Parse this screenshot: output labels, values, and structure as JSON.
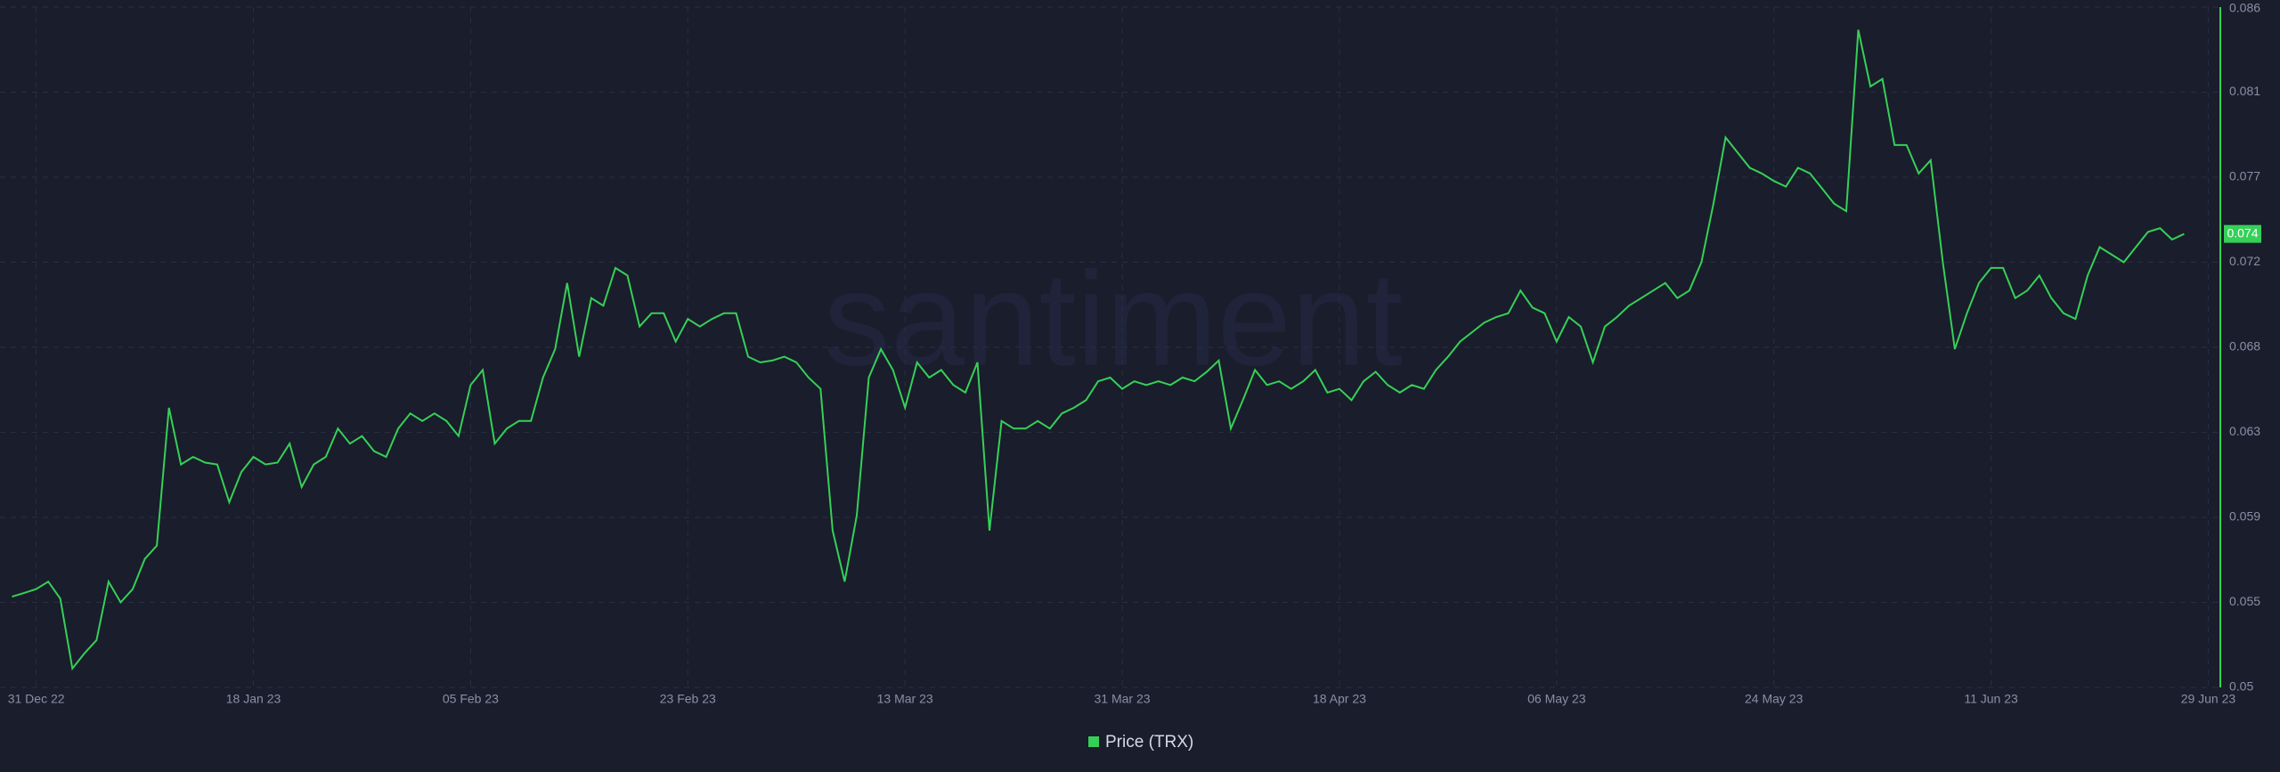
{
  "chart_data": {
    "type": "line",
    "watermark": "santiment",
    "x": [
      "2022-12-29",
      "2022-12-30",
      "2022-12-31",
      "2023-01-01",
      "2023-01-02",
      "2023-01-03",
      "2023-01-04",
      "2023-01-05",
      "2023-01-06",
      "2023-01-07",
      "2023-01-08",
      "2023-01-09",
      "2023-01-10",
      "2023-01-11",
      "2023-01-12",
      "2023-01-13",
      "2023-01-14",
      "2023-01-15",
      "2023-01-16",
      "2023-01-17",
      "2023-01-18",
      "2023-01-19",
      "2023-01-20",
      "2023-01-21",
      "2023-01-22",
      "2023-01-23",
      "2023-01-24",
      "2023-01-25",
      "2023-01-26",
      "2023-01-27",
      "2023-01-28",
      "2023-01-29",
      "2023-01-30",
      "2023-01-31",
      "2023-02-01",
      "2023-02-02",
      "2023-02-03",
      "2023-02-04",
      "2023-02-05",
      "2023-02-06",
      "2023-02-07",
      "2023-02-08",
      "2023-02-09",
      "2023-02-10",
      "2023-02-11",
      "2023-02-12",
      "2023-02-13",
      "2023-02-14",
      "2023-02-15",
      "2023-02-16",
      "2023-02-17",
      "2023-02-18",
      "2023-02-19",
      "2023-02-20",
      "2023-02-21",
      "2023-02-22",
      "2023-02-23",
      "2023-02-24",
      "2023-02-25",
      "2023-02-26",
      "2023-02-27",
      "2023-02-28",
      "2023-03-01",
      "2023-03-02",
      "2023-03-03",
      "2023-03-04",
      "2023-03-05",
      "2023-03-06",
      "2023-03-07",
      "2023-03-08",
      "2023-03-09",
      "2023-03-10",
      "2023-03-11",
      "2023-03-12",
      "2023-03-13",
      "2023-03-14",
      "2023-03-15",
      "2023-03-16",
      "2023-03-17",
      "2023-03-18",
      "2023-03-19",
      "2023-03-20",
      "2023-03-21",
      "2023-03-22",
      "2023-03-23",
      "2023-03-24",
      "2023-03-25",
      "2023-03-26",
      "2023-03-27",
      "2023-03-28",
      "2023-03-29",
      "2023-03-30",
      "2023-03-31",
      "2023-04-01",
      "2023-04-02",
      "2023-04-03",
      "2023-04-04",
      "2023-04-05",
      "2023-04-06",
      "2023-04-07",
      "2023-04-08",
      "2023-04-09",
      "2023-04-10",
      "2023-04-11",
      "2023-04-12",
      "2023-04-13",
      "2023-04-14",
      "2023-04-15",
      "2023-04-16",
      "2023-04-17",
      "2023-04-18",
      "2023-04-19",
      "2023-04-20",
      "2023-04-21",
      "2023-04-22",
      "2023-04-23",
      "2023-04-24",
      "2023-04-25",
      "2023-04-26",
      "2023-04-27",
      "2023-04-28",
      "2023-04-29",
      "2023-04-30",
      "2023-05-01",
      "2023-05-02",
      "2023-05-03",
      "2023-05-04",
      "2023-05-05",
      "2023-05-06",
      "2023-05-07",
      "2023-05-08",
      "2023-05-09",
      "2023-05-10",
      "2023-05-11",
      "2023-05-12",
      "2023-05-13",
      "2023-05-14",
      "2023-05-15",
      "2023-05-16",
      "2023-05-17",
      "2023-05-18",
      "2023-05-19",
      "2023-05-20",
      "2023-05-21",
      "2023-05-22",
      "2023-05-23",
      "2023-05-24",
      "2023-05-25",
      "2023-05-26",
      "2023-05-27",
      "2023-05-28",
      "2023-05-29",
      "2023-05-30",
      "2023-05-31",
      "2023-06-01",
      "2023-06-02",
      "2023-06-03",
      "2023-06-04",
      "2023-06-05",
      "2023-06-06",
      "2023-06-07",
      "2023-06-08",
      "2023-06-09",
      "2023-06-10",
      "2023-06-11",
      "2023-06-12",
      "2023-06-13",
      "2023-06-14",
      "2023-06-15",
      "2023-06-16",
      "2023-06-17",
      "2023-06-18",
      "2023-06-19",
      "2023-06-20",
      "2023-06-21",
      "2023-06-22",
      "2023-06-23",
      "2023-06-24",
      "2023-06-25",
      "2023-06-26",
      "2023-06-27"
    ],
    "series": [
      {
        "name": "Price (TRX)",
        "color": "#35d058",
        "values": [
          0.0548,
          0.055,
          0.0552,
          0.0556,
          0.0547,
          0.051,
          0.0518,
          0.0525,
          0.0556,
          0.0545,
          0.0552,
          0.0568,
          0.0575,
          0.0648,
          0.0618,
          0.0622,
          0.0619,
          0.0618,
          0.0598,
          0.0614,
          0.0622,
          0.0618,
          0.0619,
          0.0629,
          0.0606,
          0.0618,
          0.0622,
          0.0637,
          0.0629,
          0.0633,
          0.0625,
          0.0622,
          0.0637,
          0.0645,
          0.0641,
          0.0645,
          0.0641,
          0.0633,
          0.066,
          0.0668,
          0.0629,
          0.0637,
          0.0641,
          0.0641,
          0.0664,
          0.0679,
          0.0714,
          0.0675,
          0.0706,
          0.0702,
          0.0722,
          0.0718,
          0.0691,
          0.0698,
          0.0698,
          0.0683,
          0.0695,
          0.0691,
          0.0695,
          0.0698,
          0.0698,
          0.0675,
          0.0672,
          0.0673,
          0.0675,
          0.0672,
          0.0664,
          0.0658,
          0.0583,
          0.0556,
          0.0591,
          0.0664,
          0.0679,
          0.0668,
          0.0648,
          0.0672,
          0.0664,
          0.0668,
          0.066,
          0.0656,
          0.0672,
          0.0583,
          0.0641,
          0.0637,
          0.0637,
          0.0641,
          0.0637,
          0.0645,
          0.0648,
          0.0652,
          0.0662,
          0.0664,
          0.0658,
          0.0662,
          0.066,
          0.0662,
          0.066,
          0.0664,
          0.0662,
          0.0667,
          0.0673,
          0.0637,
          0.0652,
          0.0668,
          0.066,
          0.0662,
          0.0658,
          0.0662,
          0.0668,
          0.0656,
          0.0658,
          0.0652,
          0.0662,
          0.0667,
          0.066,
          0.0656,
          0.066,
          0.0658,
          0.0668,
          0.0675,
          0.0683,
          0.0688,
          0.0693,
          0.0696,
          0.0698,
          0.071,
          0.0701,
          0.0698,
          0.0683,
          0.0696,
          0.0691,
          0.0672,
          0.0691,
          0.0696,
          0.0702,
          0.0706,
          0.071,
          0.0714,
          0.0706,
          0.071,
          0.0725,
          0.0756,
          0.0791,
          0.0783,
          0.0775,
          0.0772,
          0.0768,
          0.0765,
          0.0775,
          0.0772,
          0.0764,
          0.0756,
          0.0752,
          0.0848,
          0.0818,
          0.0822,
          0.0787,
          0.0787,
          0.0772,
          0.0779,
          0.0725,
          0.0679,
          0.0698,
          0.0714,
          0.0722,
          0.0722,
          0.0706,
          0.071,
          0.0718,
          0.0706,
          0.0698,
          0.0695,
          0.0718,
          0.0733,
          0.0729,
          0.0725,
          0.0733,
          0.0741,
          0.0743,
          0.0737,
          0.074
        ]
      }
    ],
    "xlim": [
      "2022-12-28",
      "2023-06-30"
    ],
    "xticks": [
      {
        "value": "2022-12-31",
        "label": "31 Dec 22"
      },
      {
        "value": "2023-01-18",
        "label": "18 Jan 23"
      },
      {
        "value": "2023-02-05",
        "label": "05 Feb 23"
      },
      {
        "value": "2023-02-23",
        "label": "23 Feb 23"
      },
      {
        "value": "2023-03-13",
        "label": "13 Mar 23"
      },
      {
        "value": "2023-03-31",
        "label": "31 Mar 23"
      },
      {
        "value": "2023-04-18",
        "label": "18 Apr 23"
      },
      {
        "value": "2023-05-06",
        "label": "06 May 23"
      },
      {
        "value": "2023-05-24",
        "label": "24 May 23"
      },
      {
        "value": "2023-06-11",
        "label": "11 Jun 23"
      },
      {
        "value": "2023-06-29",
        "label": "29 Jun 23"
      }
    ],
    "ylim": [
      0.05,
      0.086
    ],
    "yticks": [
      0.05,
      {
        "value": 0.0545,
        "label": "0.055"
      },
      0.059,
      {
        "value": 0.0635,
        "label": "0.063"
      },
      0.068,
      {
        "value": 0.0725,
        "label": "0.072"
      },
      0.077,
      {
        "value": 0.0815,
        "label": "0.081"
      },
      0.086
    ],
    "grid": true
  }
}
